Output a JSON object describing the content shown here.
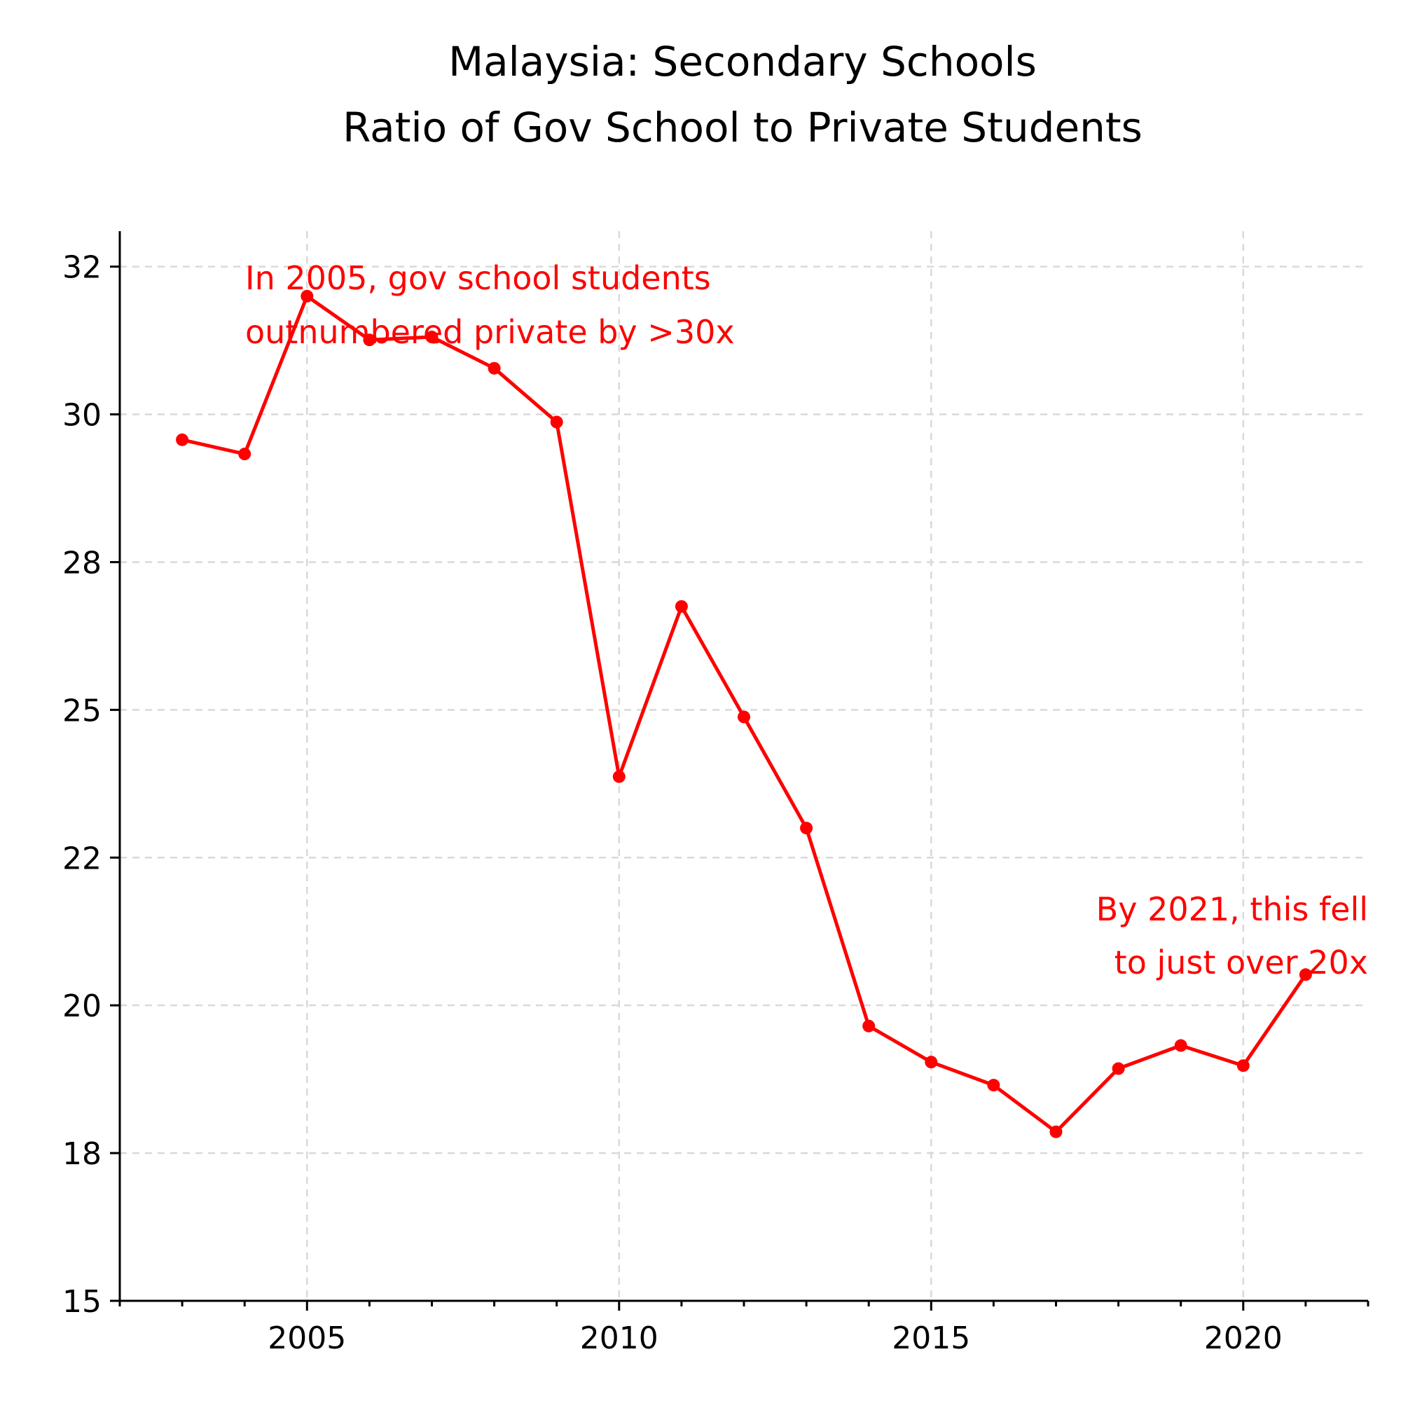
{
  "chart_data": {
    "type": "line",
    "title_lines": [
      "Malaysia: Secondary Schools",
      "Ratio of Gov School to Private Students"
    ],
    "xlabel": "",
    "ylabel": "",
    "xlim": [
      2002,
      2022
    ],
    "ylim": [
      15,
      33.1
    ],
    "x_ticks": [
      2005,
      2010,
      2015,
      2020
    ],
    "x_tick_labels": [
      "2005",
      "2010",
      "2015",
      "2020"
    ],
    "x_minor_ticks": [
      2002,
      2003,
      2004,
      2006,
      2007,
      2008,
      2009,
      2011,
      2012,
      2013,
      2014,
      2016,
      2017,
      2018,
      2019,
      2021,
      2022
    ],
    "y_ticks": [
      15,
      17.5,
      20,
      22.5,
      25,
      27.5,
      30,
      32.5
    ],
    "y_tick_labels": [
      "15",
      "18",
      "20",
      "22",
      "25",
      "28",
      "30",
      "32"
    ],
    "grid": true,
    "line_color": "#ff0000",
    "series": [
      {
        "x": [
          2003,
          2004,
          2005,
          2006,
          2007,
          2008,
          2009,
          2010,
          2011,
          2012,
          2013,
          2014,
          2015,
          2016,
          2017,
          2018,
          2019,
          2020,
          2021
        ],
        "y": [
          29.57,
          29.33,
          32.0,
          31.26,
          31.31,
          30.78,
          29.87,
          23.87,
          26.75,
          24.88,
          23.0,
          19.65,
          19.04,
          18.65,
          17.86,
          18.93,
          19.32,
          18.98,
          20.52
        ]
      }
    ],
    "annotations": [
      {
        "lines": [
          "In 2005, gov school students",
          "outnumbered private by >30x"
        ],
        "color": "#ff0000"
      },
      {
        "lines": [
          "By 2021, this fell",
          "to just over 20x"
        ],
        "color": "#ff0000"
      }
    ]
  }
}
